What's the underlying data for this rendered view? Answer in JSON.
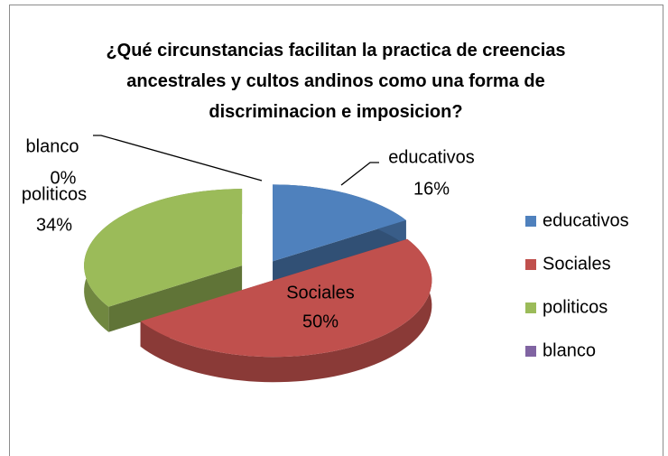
{
  "chart_data": {
    "type": "pie",
    "title": "¿Qué circunstancias facilitan la practica de creencias ancestrales y cultos andinos como una forma de discriminacion e imposicion?",
    "categories": [
      "educativos",
      "Sociales",
      "politicos",
      "blanco"
    ],
    "values": [
      16,
      50,
      34,
      0
    ],
    "value_labels": [
      "16%",
      "50%",
      "34%",
      "0%"
    ],
    "colors": [
      "#4f81bd",
      "#c0504d",
      "#9bbb59",
      "#8064a2"
    ],
    "legend": "right"
  }
}
